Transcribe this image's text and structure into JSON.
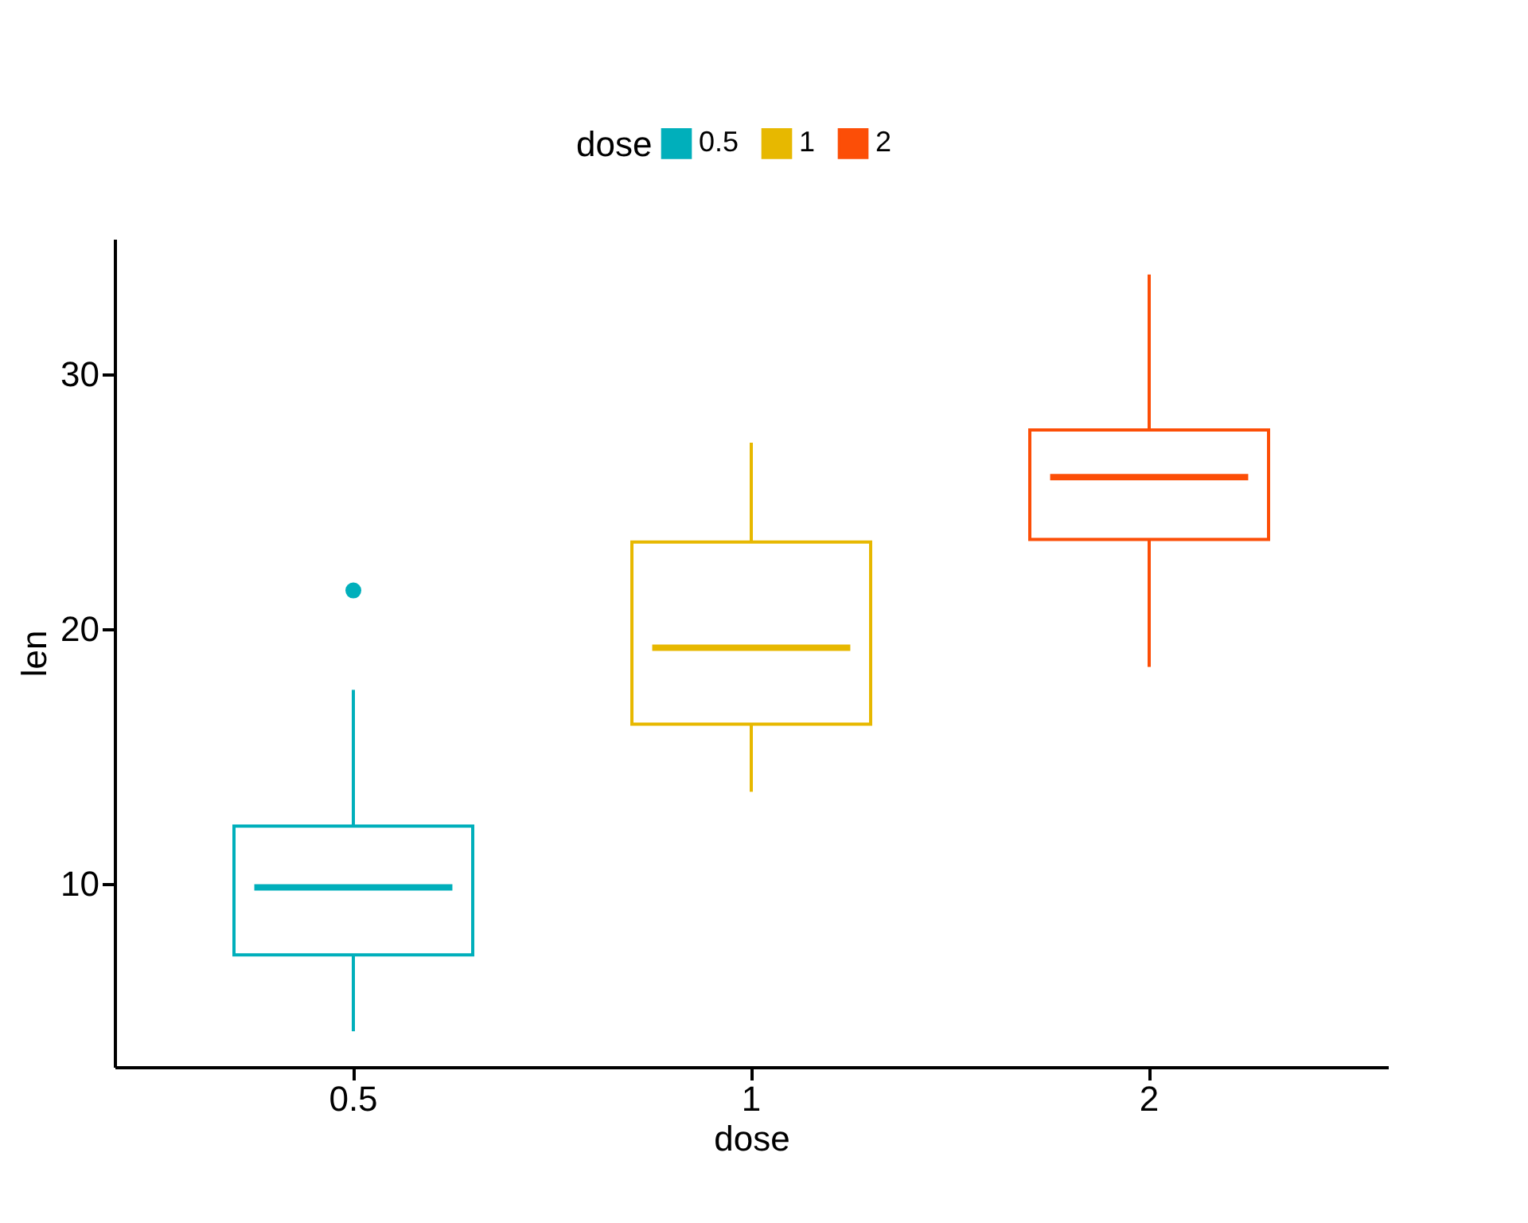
{
  "chart_data": {
    "type": "box",
    "xlabel": "dose",
    "ylabel": "len",
    "legend_title": "dose",
    "legend": "top",
    "grid": false,
    "categories": [
      "0.5",
      "1",
      "2"
    ],
    "series": [
      {
        "name": "0.5",
        "color": "#00afbb",
        "boxes": [
          {
            "low": 4.2,
            "q1": 7.2,
            "median": 9.85,
            "q3": 12.25,
            "high": 17.6,
            "outliers": [
              21.5
            ]
          },
          null,
          null
        ]
      },
      {
        "name": "1",
        "color": "#e7b800",
        "boxes": [
          null,
          {
            "low": 13.6,
            "q1": 16.25,
            "median": 19.25,
            "q3": 23.4,
            "high": 27.3
          },
          null
        ]
      },
      {
        "name": "2",
        "color": "#fc4e07",
        "boxes": [
          null,
          null,
          {
            "low": 18.5,
            "q1": 23.5,
            "median": 25.95,
            "q3": 27.8,
            "high": 33.9
          }
        ]
      }
    ],
    "ylim": [
      2.8,
      35.3
    ],
    "yticks": [
      10,
      20,
      30
    ]
  }
}
